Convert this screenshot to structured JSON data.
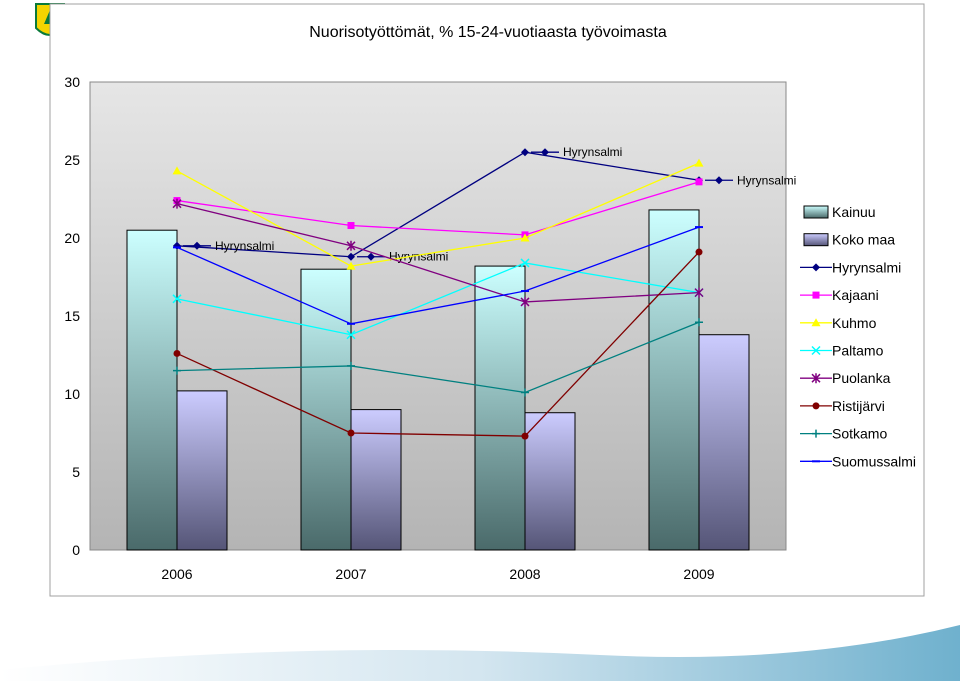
{
  "chart_data": {
    "type": "bar",
    "title": "Nuorisotyöttömät, % 15-24-vuotiaasta työvoimasta",
    "categories": [
      "2006",
      "2007",
      "2008",
      "2009"
    ],
    "ylim": [
      0,
      30
    ],
    "yticks": [
      0,
      5,
      10,
      15,
      20,
      25,
      30
    ],
    "grid": false,
    "legend_position": "right",
    "bar_series": [
      {
        "name": "Kainuu",
        "values": [
          20.5,
          18.0,
          18.2,
          21.8
        ],
        "color": "#ccffff",
        "color_dark": "#4a6a6a"
      },
      {
        "name": "Koko maa",
        "values": [
          10.2,
          9.0,
          8.8,
          13.8
        ],
        "color": "#ccccff",
        "color_dark": "#555577"
      }
    ],
    "line_series": [
      {
        "name": "Hyrynsalmi",
        "values": [
          19.5,
          18.8,
          25.5,
          23.7
        ],
        "color": "#000080",
        "marker": "diamond",
        "point_label": "Hyrynsalmi"
      },
      {
        "name": "Kajaani",
        "values": [
          22.4,
          20.8,
          20.2,
          23.6
        ],
        "color": "#ff00ff",
        "marker": "square"
      },
      {
        "name": "Kuhmo",
        "values": [
          24.3,
          18.2,
          20.0,
          24.8
        ],
        "color": "#ffff00",
        "marker": "triangle"
      },
      {
        "name": "Paltamo",
        "values": [
          16.1,
          13.8,
          18.4,
          16.5
        ],
        "color": "#00ffff",
        "marker": "x"
      },
      {
        "name": "Puolanka",
        "values": [
          22.2,
          19.5,
          15.9,
          16.5
        ],
        "color": "#800080",
        "marker": "star"
      },
      {
        "name": "Ristijärvi",
        "values": [
          12.6,
          7.5,
          7.3,
          19.1
        ],
        "color": "#800000",
        "marker": "circle"
      },
      {
        "name": "Sotkamo",
        "values": [
          11.5,
          11.8,
          10.1,
          14.6
        ],
        "color": "#008080",
        "marker": "plus"
      },
      {
        "name": "Suomussalmi",
        "values": [
          19.4,
          14.5,
          16.6,
          20.7
        ],
        "color": "#0000ff",
        "marker": "dash"
      }
    ]
  }
}
